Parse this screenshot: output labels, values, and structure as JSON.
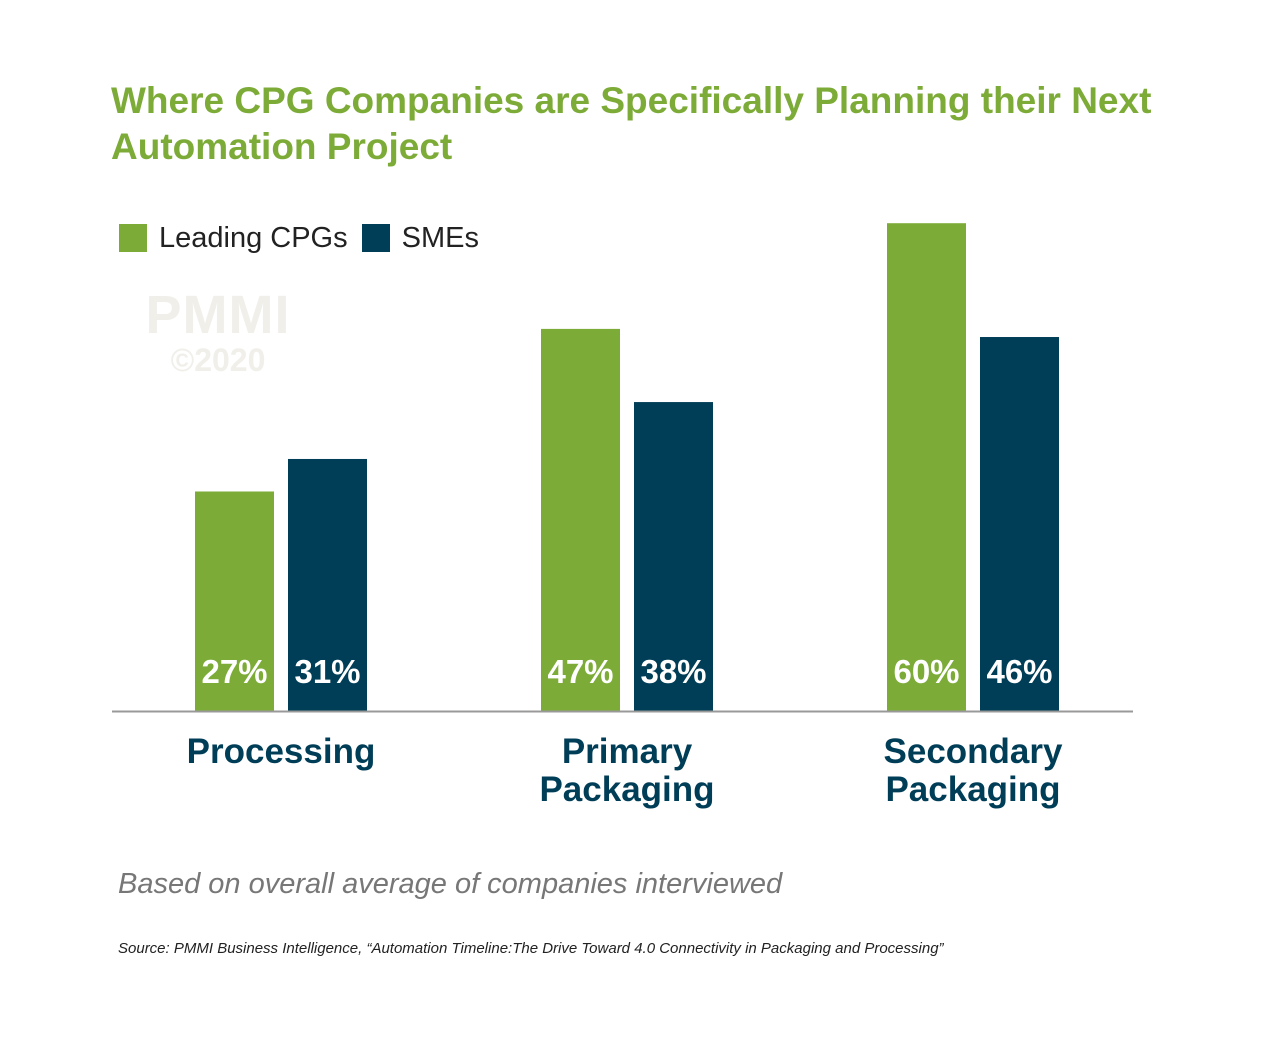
{
  "title": "Where CPG Companies are Specifically Planning their Next Automation Project",
  "watermark": {
    "name": "PMMI",
    "year": "©2020"
  },
  "note": "Based on overall average of companies interviewed",
  "source": "Source: PMMI Business Intelligence, “Automation Timeline:The Drive Toward 4.0 Connectivity in Packaging and Processing”",
  "colors": {
    "title": "#7dab38",
    "leading": "#7dab38",
    "sme": "#003d57",
    "category_text": "#003d57",
    "value_text": "#ffffff",
    "axis": "#999999",
    "watermark": "#f1efea"
  },
  "chart_data": {
    "type": "bar",
    "title": "Where CPG Companies are Specifically Planning their Next Automation Project",
    "categories": [
      [
        "Processing"
      ],
      [
        "Primary",
        "Packaging"
      ],
      [
        "Secondary",
        "Packaging"
      ]
    ],
    "series": [
      {
        "name": "Leading CPGs",
        "values": [
          27,
          47,
          60
        ],
        "labels": [
          "27%",
          "47%",
          "60%"
        ]
      },
      {
        "name": "SMEs",
        "values": [
          31,
          38,
          46
        ],
        "labels": [
          "31%",
          "38%",
          "46%"
        ]
      }
    ],
    "ylim": [
      0,
      60
    ],
    "grid": false,
    "legend": "top-left",
    "xlabel": "",
    "ylabel": ""
  }
}
